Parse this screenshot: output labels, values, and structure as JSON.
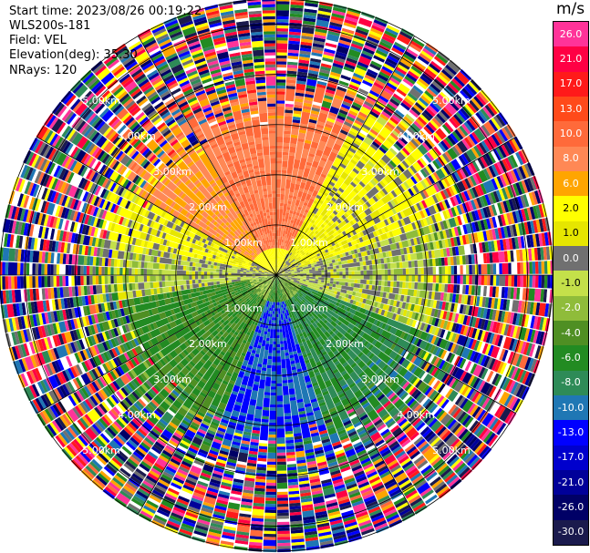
{
  "header": {
    "start_time": "Start time: 2023/08/26 00:19:22",
    "device": "WLS200s-181",
    "field": "Field: VEL",
    "elevation": "Elevation(deg): 35.30",
    "nrays": "NRays: 120"
  },
  "colorbar": {
    "units": "m/s",
    "levels": [
      {
        "label": "26.0",
        "color": "#ff3399"
      },
      {
        "label": "21.0",
        "color": "#ff0044"
      },
      {
        "label": "17.0",
        "color": "#ff1a1a"
      },
      {
        "label": "13.0",
        "color": "#ff4a1a"
      },
      {
        "label": "10.0",
        "color": "#ff6a3a"
      },
      {
        "label": "8.0",
        "color": "#ff8855"
      },
      {
        "label": "6.0",
        "color": "#ffa500"
      },
      {
        "label": "2.0",
        "color": "#ffff00"
      },
      {
        "label": "1.0",
        "color": "#e6e600"
      },
      {
        "label": "0.0",
        "color": "#707070"
      },
      {
        "label": "-1.0",
        "color": "#c4e04a"
      },
      {
        "label": "-2.0",
        "color": "#8fbc3a"
      },
      {
        "label": "-4.0",
        "color": "#4f8f23"
      },
      {
        "label": "-6.0",
        "color": "#228b22"
      },
      {
        "label": "-8.0",
        "color": "#2e8b57"
      },
      {
        "label": "-10.0",
        "color": "#1f77b4"
      },
      {
        "label": "-13.0",
        "color": "#0000ff"
      },
      {
        "label": "-17.0",
        "color": "#0000cd"
      },
      {
        "label": "-21.0",
        "color": "#000099"
      },
      {
        "label": "-26.0",
        "color": "#000066"
      },
      {
        "label": "-30.0",
        "color": "#1a1a4d"
      }
    ]
  },
  "chart_data": {
    "type": "heatmap",
    "subtype": "polar-ppi",
    "field": "VEL",
    "units": "m/s",
    "n_rays": 120,
    "elevation_deg": 35.3,
    "range_rings_km": [
      1.0,
      2.0,
      3.0,
      4.0,
      5.0
    ],
    "ring_labels": [
      "1.00km",
      "2.00km",
      "3.00km",
      "4.00km",
      "5.00km"
    ],
    "dominant_velocity_by_sector": [
      {
        "sector": "north",
        "value": 10.0
      },
      {
        "sector": "north-northwest",
        "value": 8.0
      },
      {
        "sector": "west-northwest",
        "value": 2.0
      },
      {
        "sector": "east-northeast",
        "value": 2.0
      },
      {
        "sector": "east",
        "value": 0.0
      },
      {
        "sector": "west",
        "value": 0.0
      },
      {
        "sector": "south-west",
        "value": -4.0
      },
      {
        "sector": "south",
        "value": -10.0
      },
      {
        "sector": "south-east",
        "value": -6.0
      }
    ],
    "outer_ranges_km": [
      3.5,
      5.5
    ],
    "outer_region": "noisy (random colors)"
  }
}
